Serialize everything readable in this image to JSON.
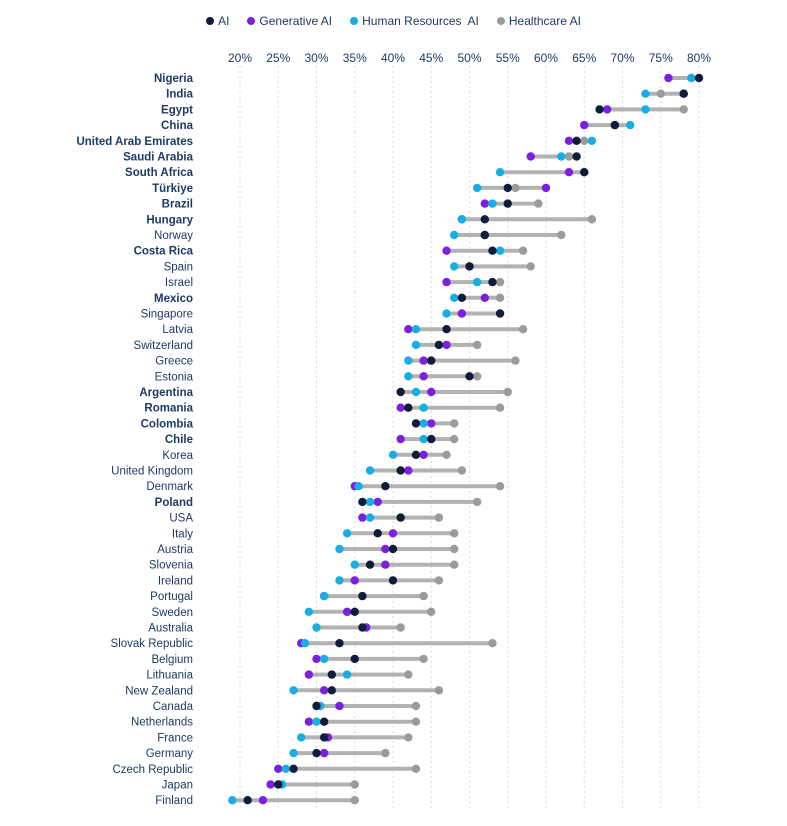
{
  "chart_data": {
    "type": "dumbbell",
    "title": "",
    "xlabel": "",
    "ylabel": "",
    "legend_position": "top-center",
    "xlim": [
      16.5,
      81.5
    ],
    "x_ticks": [
      20,
      25,
      30,
      35,
      40,
      45,
      50,
      55,
      60,
      65,
      70,
      75,
      80
    ],
    "tick_format": "{v}%",
    "grid": "vertical dashed",
    "series": [
      {
        "key": "ai",
        "name": "AI",
        "color": "#0f1c3a"
      },
      {
        "key": "gen",
        "name": "Generative AI",
        "color": "#7b1fe0"
      },
      {
        "key": "hr",
        "name": "Human Resources  AI",
        "color": "#18aee4"
      },
      {
        "key": "hc",
        "name": "Healthcare AI",
        "color": "#9b9b9b"
      }
    ],
    "rows": [
      {
        "country": "Nigeria",
        "bold": true,
        "ai": 80,
        "gen": 76,
        "hr": 79,
        "hc": 79
      },
      {
        "country": "India",
        "bold": true,
        "ai": 78,
        "gen": 78,
        "hr": 73,
        "hc": 75
      },
      {
        "country": "Egypt",
        "bold": true,
        "ai": 67,
        "gen": 68,
        "hr": 73,
        "hc": 78
      },
      {
        "country": "China",
        "bold": true,
        "ai": 69,
        "gen": 65,
        "hr": 71,
        "hc": 69
      },
      {
        "country": "United Arab Emirates",
        "bold": true,
        "ai": 64,
        "gen": 63,
        "hr": 66,
        "hc": 65
      },
      {
        "country": "Saudi Arabia",
        "bold": true,
        "ai": 64,
        "gen": 58,
        "hr": 62,
        "hc": 63
      },
      {
        "country": "South Africa",
        "bold": true,
        "ai": 65,
        "gen": 63,
        "hr": 54,
        "hc": 65
      },
      {
        "country": "Türkiye",
        "bold": true,
        "ai": 55,
        "gen": 60,
        "hr": 51,
        "hc": 56
      },
      {
        "country": "Brazil",
        "bold": true,
        "ai": 55,
        "gen": 52,
        "hr": 53,
        "hc": 59
      },
      {
        "country": "Hungary",
        "bold": true,
        "ai": 52,
        "gen": 49,
        "hr": 49,
        "hc": 66
      },
      {
        "country": "Norway",
        "bold": false,
        "ai": 52,
        "gen": 52,
        "hr": 48,
        "hc": 62
      },
      {
        "country": "Costa Rica",
        "bold": true,
        "ai": 53,
        "gen": 47,
        "hr": 54,
        "hc": 57
      },
      {
        "country": "Spain",
        "bold": false,
        "ai": 50,
        "gen": 50,
        "hr": 48,
        "hc": 58
      },
      {
        "country": "Israel",
        "bold": false,
        "ai": 53,
        "gen": 47,
        "hr": 51,
        "hc": 54
      },
      {
        "country": "Mexico",
        "bold": true,
        "ai": 49,
        "gen": 52,
        "hr": 48,
        "hc": 54
      },
      {
        "country": "Singapore",
        "bold": false,
        "ai": 54,
        "gen": 49,
        "hr": 47,
        "hc": 49
      },
      {
        "country": "Latvia",
        "bold": false,
        "ai": 47,
        "gen": 42,
        "hr": 43,
        "hc": 57
      },
      {
        "country": "Switzerland",
        "bold": false,
        "ai": 46,
        "gen": 47,
        "hr": 43,
        "hc": 51
      },
      {
        "country": "Greece",
        "bold": false,
        "ai": 45,
        "gen": 44,
        "hr": 42,
        "hc": 56
      },
      {
        "country": "Estonia",
        "bold": false,
        "ai": 50,
        "gen": 44,
        "hr": 42,
        "hc": 51
      },
      {
        "country": "Argentina",
        "bold": true,
        "ai": 41,
        "gen": 45,
        "hr": 43,
        "hc": 55
      },
      {
        "country": "Romania",
        "bold": true,
        "ai": 42,
        "gen": 41,
        "hr": 44,
        "hc": 54
      },
      {
        "country": "Colombia",
        "bold": true,
        "ai": 43,
        "gen": 45,
        "hr": 44,
        "hc": 48
      },
      {
        "country": "Chile",
        "bold": true,
        "ai": 45,
        "gen": 41,
        "hr": 44,
        "hc": 48
      },
      {
        "country": "Korea",
        "bold": false,
        "ai": 43,
        "gen": 44,
        "hr": 40,
        "hc": 47
      },
      {
        "country": "United Kingdom",
        "bold": false,
        "ai": 41,
        "gen": 42,
        "hr": 37,
        "hc": 49
      },
      {
        "country": "Denmark",
        "bold": false,
        "ai": 39,
        "gen": 35,
        "hr": 35.5,
        "hc": 54
      },
      {
        "country": "Poland",
        "bold": true,
        "ai": 36,
        "gen": 38,
        "hr": 37,
        "hc": 51
      },
      {
        "country": "USA",
        "bold": false,
        "ai": 41,
        "gen": 36,
        "hr": 37,
        "hc": 46
      },
      {
        "country": "Italy",
        "bold": false,
        "ai": 38,
        "gen": 40,
        "hr": 34,
        "hc": 48
      },
      {
        "country": "Austria",
        "bold": false,
        "ai": 40,
        "gen": 39,
        "hr": 33,
        "hc": 48
      },
      {
        "country": "Slovenia",
        "bold": false,
        "ai": 37,
        "gen": 39,
        "hr": 35,
        "hc": 48
      },
      {
        "country": "Ireland",
        "bold": false,
        "ai": 40,
        "gen": 35,
        "hr": 33,
        "hc": 46
      },
      {
        "country": "Portugal",
        "bold": false,
        "ai": 36,
        "gen": 31,
        "hr": 31,
        "hc": 44
      },
      {
        "country": "Sweden",
        "bold": false,
        "ai": 35,
        "gen": 34,
        "hr": 29,
        "hc": 45
      },
      {
        "country": "Australia",
        "bold": false,
        "ai": 36,
        "gen": 36.5,
        "hr": 30,
        "hc": 41
      },
      {
        "country": "Slovak Republic",
        "bold": false,
        "ai": 33,
        "gen": 28,
        "hr": 28.5,
        "hc": 53
      },
      {
        "country": "Belgium",
        "bold": false,
        "ai": 35,
        "gen": 30,
        "hr": 31,
        "hc": 44
      },
      {
        "country": "Lithuania",
        "bold": false,
        "ai": 32,
        "gen": 29,
        "hr": 34,
        "hc": 42
      },
      {
        "country": "New Zealand",
        "bold": false,
        "ai": 32,
        "gen": 31,
        "hr": 27,
        "hc": 46
      },
      {
        "country": "Canada",
        "bold": false,
        "ai": 30,
        "gen": 33,
        "hr": 30.5,
        "hc": 43
      },
      {
        "country": "Netherlands",
        "bold": false,
        "ai": 31,
        "gen": 29,
        "hr": 30,
        "hc": 43
      },
      {
        "country": "France",
        "bold": false,
        "ai": 31,
        "gen": 31.5,
        "hr": 28,
        "hc": 42
      },
      {
        "country": "Germany",
        "bold": false,
        "ai": 30,
        "gen": 31,
        "hr": 27,
        "hc": 39
      },
      {
        "country": "Czech Republic",
        "bold": false,
        "ai": 27,
        "gen": 25,
        "hr": 26,
        "hc": 43
      },
      {
        "country": "Japan",
        "bold": false,
        "ai": 25,
        "gen": 24,
        "hr": 25.5,
        "hc": 35
      },
      {
        "country": "Finland",
        "bold": false,
        "ai": 21,
        "gen": 23,
        "hr": 19,
        "hc": 35
      }
    ]
  }
}
